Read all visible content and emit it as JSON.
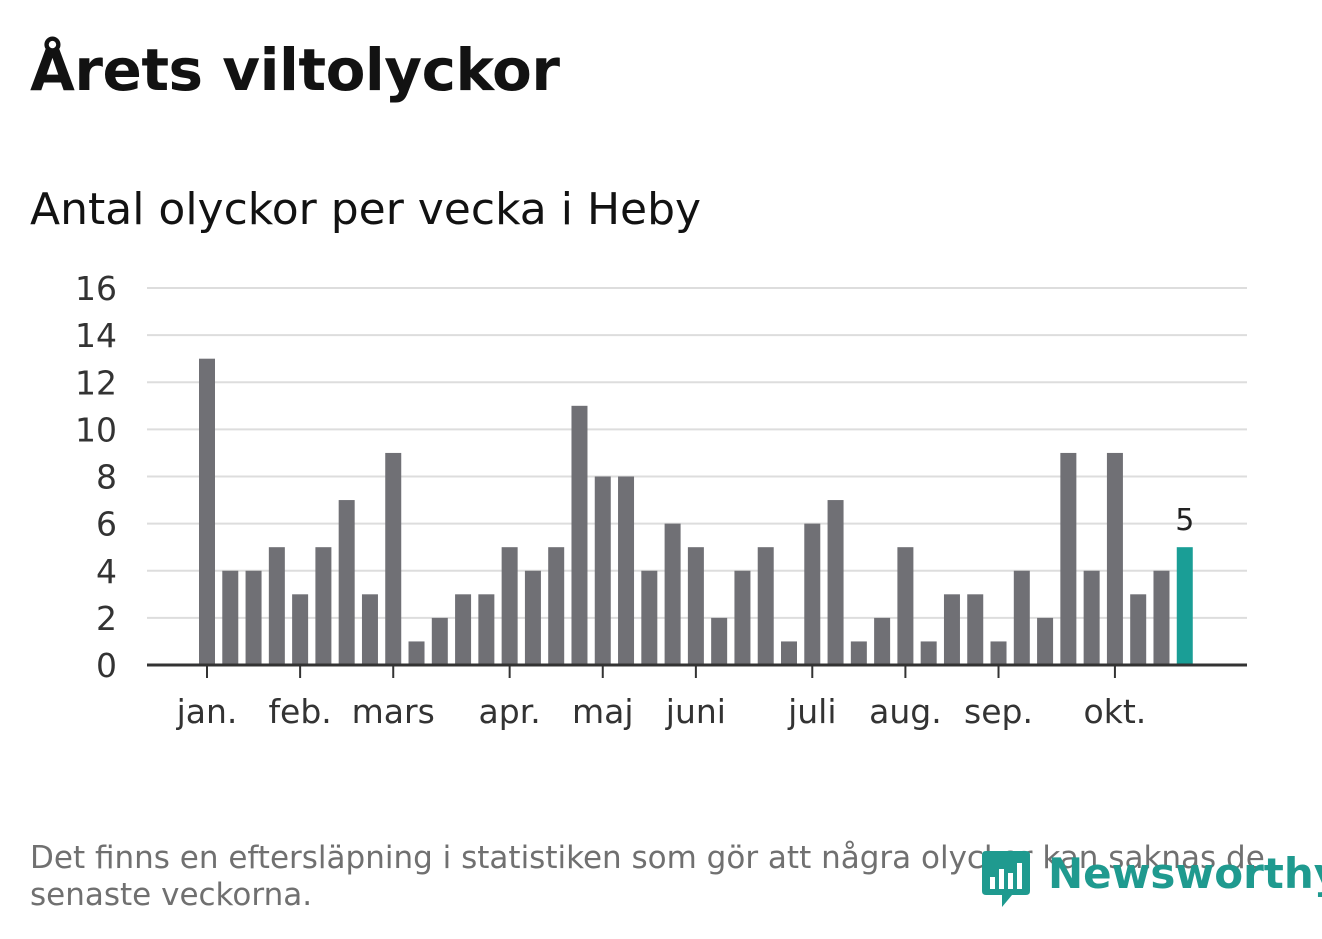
{
  "header": {
    "title": "Årets viltolyckor",
    "subtitle": "Antal olyckor per vecka i Heby"
  },
  "chart_data": {
    "type": "bar",
    "ylim": [
      0,
      16
    ],
    "yticks": [
      0,
      2,
      4,
      6,
      8,
      10,
      12,
      14,
      16
    ],
    "grid": true,
    "legend": "none",
    "x": [
      1,
      2,
      3,
      4,
      5,
      6,
      7,
      8,
      9,
      10,
      11,
      12,
      13,
      14,
      15,
      16,
      17,
      18,
      19,
      20,
      21,
      22,
      23,
      24,
      25,
      26,
      27,
      28,
      29,
      30,
      31,
      32,
      33,
      34,
      35,
      36,
      37,
      38,
      39,
      40,
      41,
      42,
      43
    ],
    "values": [
      13,
      4,
      4,
      5,
      3,
      5,
      7,
      3,
      9,
      1,
      2,
      3,
      3,
      5,
      4,
      5,
      11,
      8,
      8,
      4,
      6,
      5,
      2,
      4,
      5,
      1,
      6,
      7,
      1,
      2,
      5,
      1,
      3,
      3,
      1,
      4,
      2,
      9,
      4,
      9,
      3,
      4,
      5
    ],
    "month_ticks": [
      {
        "label": "jan.",
        "week": 1
      },
      {
        "label": "feb.",
        "week": 5
      },
      {
        "label": "mars",
        "week": 9
      },
      {
        "label": "apr.",
        "week": 14
      },
      {
        "label": "maj",
        "week": 18
      },
      {
        "label": "juni",
        "week": 22
      },
      {
        "label": "juli",
        "week": 27
      },
      {
        "label": "aug.",
        "week": 31
      },
      {
        "label": "sep.",
        "week": 35
      },
      {
        "label": "okt.",
        "week": 40
      }
    ],
    "highlight_last": true,
    "last_value_label": "5",
    "colors": {
      "bar": "#707075",
      "highlight": "#1a9e96",
      "grid": "#dddddd",
      "axis": "#333333"
    }
  },
  "footnote": "Det finns en eftersläpning i statistiken som gör att några olyckor kan saknas de senaste veckorna.",
  "logo": {
    "text": "Newsworthy",
    "icon": "newsworthy-logo-icon",
    "color": "#1f9a8f"
  }
}
